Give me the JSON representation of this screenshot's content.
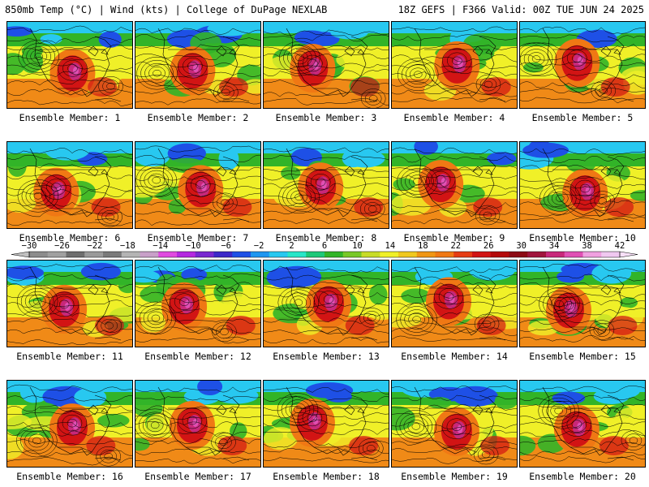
{
  "header": {
    "left": "850mb Temp (°C) | Wind (kts) | College of DuPage NEXLAB",
    "right": "18Z GEFS | F366 Valid: 00Z TUE JUN 24 2025"
  },
  "caption_prefix": "Ensemble Member:",
  "members": [
    1,
    2,
    3,
    4,
    5,
    6,
    7,
    8,
    9,
    10,
    11,
    12,
    13,
    14,
    15,
    16,
    17,
    18,
    19,
    20
  ],
  "colorbar": {
    "labels": [
      "−30",
      "−26",
      "−22",
      "−18",
      "−14",
      "−10",
      "−6",
      "−2",
      "2",
      "6",
      "10",
      "14",
      "18",
      "22",
      "26",
      "30",
      "34",
      "38",
      "42"
    ],
    "colors": [
      "#8c8c8c",
      "#a0a0a0",
      "#6e6e6e",
      "#9a9a9a",
      "#7a7a7a",
      "#b4b4b4",
      "#c8a0c8",
      "#e04ae0",
      "#b428e0",
      "#7828d0",
      "#3c28c8",
      "#1e50e6",
      "#1e96f0",
      "#28c8f0",
      "#28e6c8",
      "#1ec878",
      "#32b428",
      "#78c828",
      "#c8dc28",
      "#f0f028",
      "#f0c81e",
      "#f09614",
      "#f07814",
      "#e63c14",
      "#d21414",
      "#b40a0a",
      "#8c0a14",
      "#a0143c",
      "#c8287a",
      "#e050b4",
      "#f0a0e0",
      "#f0c8f0"
    ]
  },
  "palette": {
    "cold": "#1e50e6",
    "cool": "#28c8f0",
    "mild": "#32b428",
    "warm": "#f0f028",
    "hot": "#f07814",
    "very_hot": "#d21414",
    "extreme": "#c8287a",
    "contour": "#000000"
  }
}
